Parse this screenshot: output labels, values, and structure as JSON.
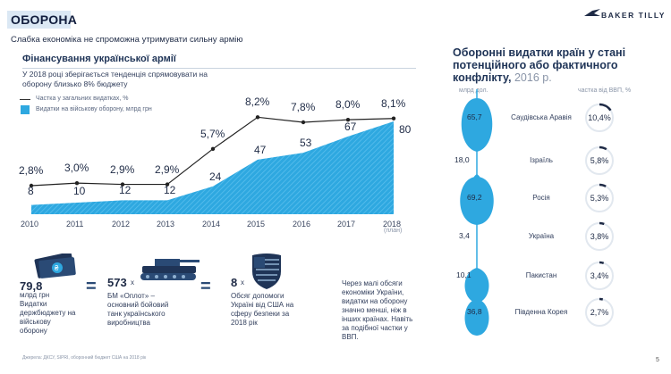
{
  "header": {
    "section_badge": "ОБОРОНА",
    "subtitle": "Слабка економіка не спроможна утримувати сильну армію",
    "logo": "BAKER TILLY"
  },
  "left": {
    "title": "Фінансування української армії",
    "intro": "У 2018 році зберігається тенденція спрямовувати на оборону близько 8% бюджету",
    "legend_line": "Частка у загальних видатках, %",
    "legend_area": "Видатки на військову оборону, млрд грн"
  },
  "chart_data": {
    "type": "area",
    "title": "Фінансування української армії",
    "categories": [
      "2010",
      "2011",
      "2012",
      "2013",
      "2014",
      "2015",
      "2016",
      "2017",
      "2018"
    ],
    "category_note_2018": "(план)",
    "series": [
      {
        "name": "Видатки на військову оборону, млрд грн",
        "type": "area",
        "values": [
          8,
          10,
          12,
          12,
          24,
          47,
          53,
          67,
          80
        ]
      },
      {
        "name": "Частка у загальних видатках, %",
        "type": "line",
        "values": [
          2.8,
          3.0,
          2.9,
          2.9,
          5.7,
          8.2,
          7.8,
          8.0,
          8.1
        ]
      }
    ],
    "area_labels": [
      "8",
      "10",
      "12",
      "12",
      "24",
      "47",
      "53",
      "67",
      "80"
    ],
    "line_labels": [
      "2,8%",
      "3,0%",
      "2,9%",
      "2,9%",
      "5,7%",
      "8,2%",
      "7,8%",
      "8,0%",
      "8,1%"
    ]
  },
  "comparison": {
    "money_value": "79,8",
    "money_unit": "млрд грн",
    "money_desc": "Видатки держбюджету на військову оборону",
    "eq1": "=",
    "tank_value": "573",
    "tank_x": "x",
    "tank_desc": "БМ «Оплот» – основний бойовий танк українського виробництва",
    "eq2": "=",
    "flag_value": "8",
    "flag_x": "x",
    "flag_desc": "Обсяг допомоги Україні від США на сферу безпеки за 2018 рік",
    "note": "Через малі обсяги економіки України, видатки на оборону значно менші, ніж в інших країнах. Навіть за подібної частки у ВВП."
  },
  "right": {
    "title": "Оборонні видатки країн у стані потенційного або фактичного конфлікту,",
    "title_year": "2016 р.",
    "col_left": "млрд дол.",
    "col_right": "частка від ВВП, %",
    "rows": [
      {
        "country": "Саудівська Аравія",
        "value": "65,7",
        "gdp": "10,4%",
        "gdp_pct": 10.4
      },
      {
        "country": "Ізраїль",
        "value": "18,0",
        "gdp": "5,8%",
        "gdp_pct": 5.8
      },
      {
        "country": "Росія",
        "value": "69,2",
        "gdp": "5,3%",
        "gdp_pct": 5.3
      },
      {
        "country": "Україна",
        "value": "3,4",
        "gdp": "3,8%",
        "gdp_pct": 3.8
      },
      {
        "country": "Пакистан",
        "value": "10,1",
        "gdp": "3,4%",
        "gdp_pct": 3.4
      },
      {
        "country": "Південна Корея",
        "value": "36,8",
        "gdp": "2,7%",
        "gdp_pct": 2.7
      }
    ]
  },
  "footer": {
    "source": "Джерела: ДКСУ, SIPRI, оборонний бюджет США на 2018 рік",
    "page": "5"
  },
  "colors": {
    "accent": "#2ea8e0",
    "dark": "#1f2b46",
    "badge": "#dbe8f4"
  }
}
